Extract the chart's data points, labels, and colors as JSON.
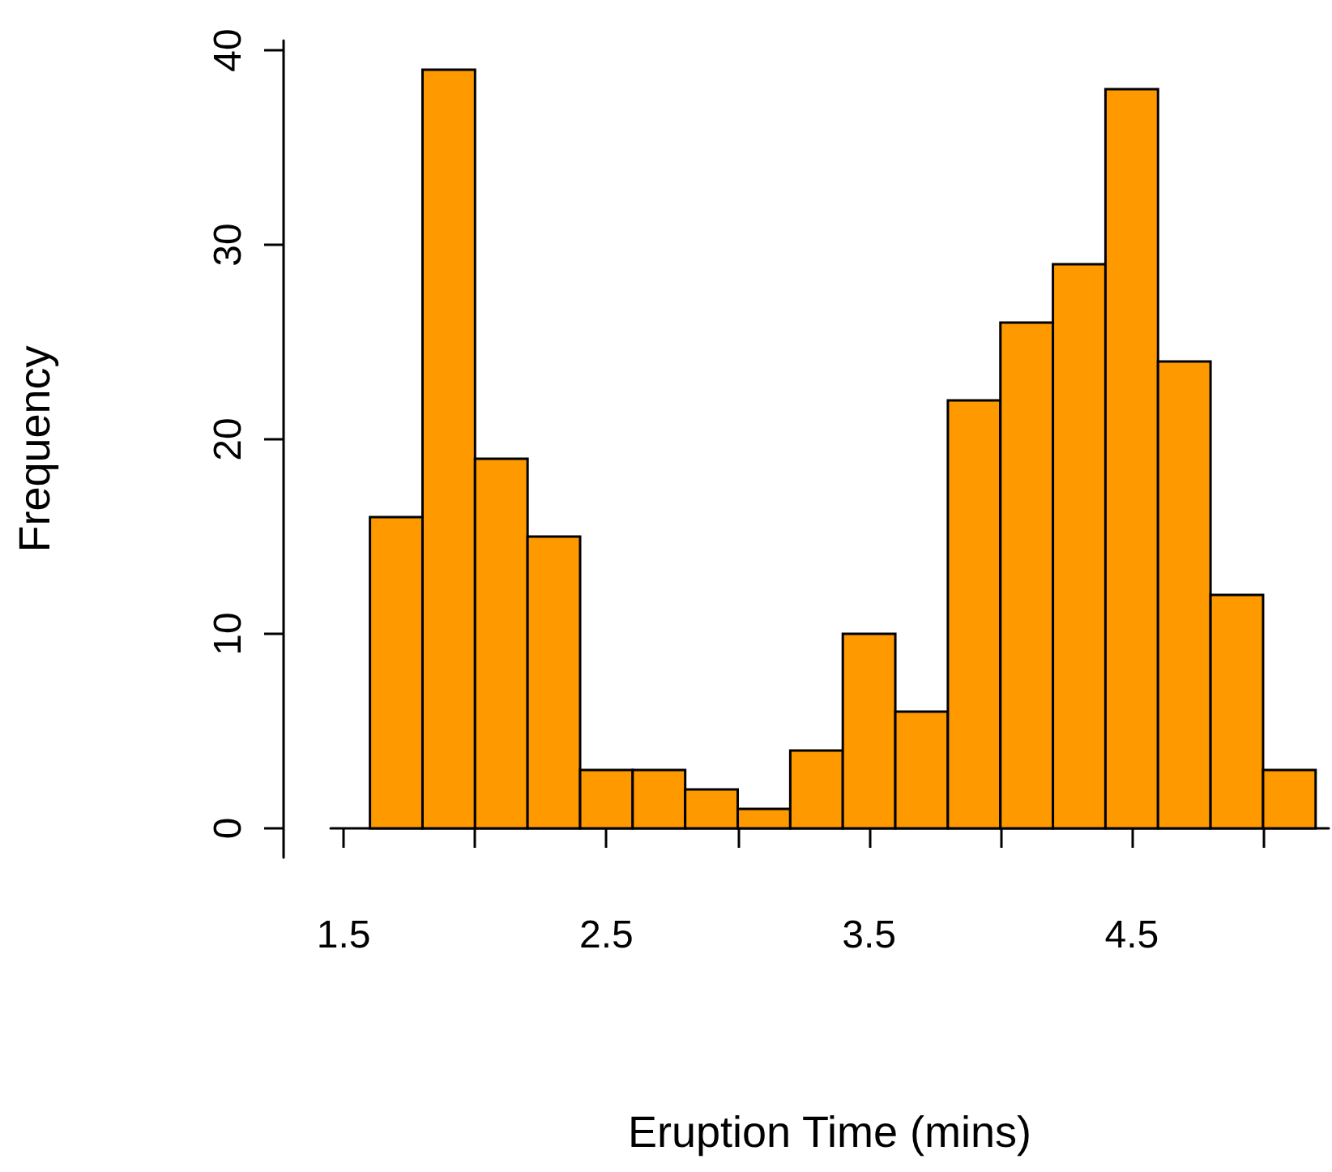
{
  "chart_data": {
    "type": "histogram",
    "xlabel": "Eruption Time (mins)",
    "ylabel": "Frequency",
    "bins": [
      1.6,
      1.8,
      2.0,
      2.2,
      2.4,
      2.6,
      2.8,
      3.0,
      3.2,
      3.4,
      3.6,
      3.8,
      4.0,
      4.2,
      4.4,
      4.6,
      4.8,
      5.0,
      5.2
    ],
    "values": [
      16,
      39,
      19,
      15,
      3,
      3,
      2,
      1,
      4,
      10,
      6,
      22,
      26,
      29,
      38,
      24,
      12,
      3
    ],
    "color": "#ff9900",
    "xlim": [
      1.45,
      5.25
    ],
    "xticks": [
      1.5,
      {
        "value": 2,
        "label": null
      },
      2.5,
      {
        "value": 3,
        "label": null
      },
      3.5,
      {
        "value": 4,
        "label": null
      },
      4.5,
      {
        "value": 5,
        "label": null
      }
    ],
    "ylim": [
      -1.5,
      40.5
    ],
    "yticks": [
      0,
      10,
      20,
      30,
      40
    ],
    "grid": false
  }
}
